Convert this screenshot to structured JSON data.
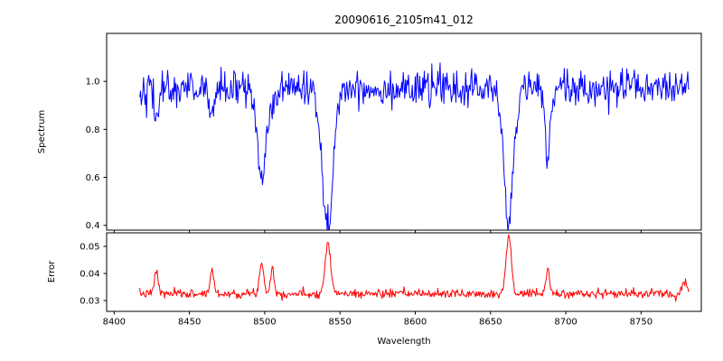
{
  "figure": {
    "background": "#ffffff",
    "axis_color": "#000000"
  },
  "chart_data": [
    {
      "type": "line",
      "title": "20090616_2105m41_012",
      "ylabel": "Spectrum",
      "xlabel": "",
      "legend": "none",
      "grid": false,
      "line_color": "#0000ff",
      "xlim": [
        8395,
        8790
      ],
      "ylim": [
        0.38,
        1.2
      ],
      "xticks": [
        8400,
        8450,
        8500,
        8550,
        8600,
        8650,
        8700,
        8750
      ],
      "xticklabels": [
        "8400",
        "8450",
        "8500",
        "8550",
        "8600",
        "8650",
        "8700",
        "8750"
      ],
      "yticks": [
        0.4,
        0.6,
        0.8,
        1.0
      ],
      "yticklabels": [
        "0.4",
        "0.6",
        "0.8",
        "1.0"
      ],
      "show_x_tick_labels": false,
      "series": {
        "name": "spectrum-flux",
        "seed": 42,
        "x_start": 8417,
        "x_end": 8782,
        "x_step": 0.5,
        "baseline": 0.97,
        "noise_sigma": 0.037,
        "features": [
          {
            "center": 8428,
            "amplitude": -0.12,
            "sigma": 1.5,
            "kind": "absorption"
          },
          {
            "center": 8465,
            "amplitude": -0.12,
            "sigma": 1.5,
            "kind": "absorption"
          },
          {
            "center": 8498,
            "amplitude": -0.4,
            "sigma": 2.8,
            "kind": "absorption"
          },
          {
            "center": 8505,
            "amplitude": -0.1,
            "sigma": 1.5,
            "kind": "absorption"
          },
          {
            "center": 8542,
            "amplitude": -0.58,
            "sigma": 3.5,
            "kind": "absorption"
          },
          {
            "center": 8662,
            "amplitude": -0.55,
            "sigma": 3.2,
            "kind": "absorption"
          },
          {
            "center": 8688,
            "amplitude": -0.28,
            "sigma": 1.8,
            "kind": "absorption"
          }
        ]
      }
    },
    {
      "type": "line",
      "title": "",
      "ylabel": "Error",
      "xlabel": "Wavelength",
      "legend": "none",
      "grid": false,
      "line_color": "#ff0000",
      "xlim": [
        8395,
        8790
      ],
      "ylim": [
        0.026,
        0.055
      ],
      "xticks": [
        8400,
        8450,
        8500,
        8550,
        8600,
        8650,
        8700,
        8750
      ],
      "xticklabels": [
        "8400",
        "8450",
        "8500",
        "8550",
        "8600",
        "8650",
        "8700",
        "8750"
      ],
      "yticks": [
        0.03,
        0.04,
        0.05
      ],
      "yticklabels": [
        "0.03",
        "0.04",
        "0.05"
      ],
      "show_x_tick_labels": true,
      "series": {
        "name": "spectrum-error",
        "seed": 7,
        "x_start": 8417,
        "x_end": 8782,
        "x_step": 0.5,
        "baseline": 0.0325,
        "noise_sigma": 0.0008,
        "features": [
          {
            "center": 8428,
            "amplitude": 0.0085,
            "sigma": 1.2,
            "kind": "peak"
          },
          {
            "center": 8465,
            "amplitude": 0.009,
            "sigma": 1.2,
            "kind": "peak"
          },
          {
            "center": 8498,
            "amplitude": 0.011,
            "sigma": 1.5,
            "kind": "peak"
          },
          {
            "center": 8505,
            "amplitude": 0.0095,
            "sigma": 1.2,
            "kind": "peak"
          },
          {
            "center": 8542,
            "amplitude": 0.0195,
            "sigma": 1.8,
            "kind": "peak"
          },
          {
            "center": 8662,
            "amplitude": 0.021,
            "sigma": 1.8,
            "kind": "peak"
          },
          {
            "center": 8688,
            "amplitude": 0.009,
            "sigma": 1.2,
            "kind": "peak"
          },
          {
            "center": 8779,
            "amplitude": 0.004,
            "sigma": 2.0,
            "kind": "peak"
          }
        ]
      }
    }
  ]
}
